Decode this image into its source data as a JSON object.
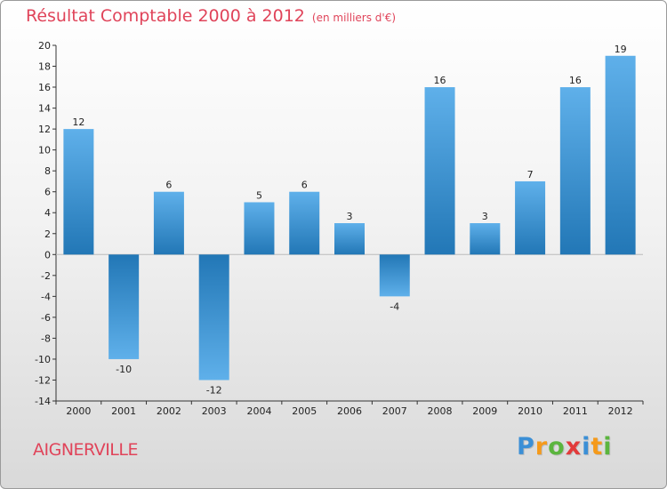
{
  "title": "Résultat Comptable 2000 à 2012",
  "subtitle": "(en milliers d'€)",
  "commune": "AIGNERVILLE",
  "logo": {
    "letters": [
      "P",
      "r",
      "o",
      "x",
      "i",
      "t",
      "i"
    ],
    "colors": [
      "#3b8fd6",
      "#f59a1b",
      "#5bb53e",
      "#e23b3b",
      "#3b8fd6",
      "#f59a1b",
      "#5bb53e"
    ]
  },
  "colors": {
    "title": "#e0445a",
    "bar_dark": "#2277b6",
    "bar_light": "#5fb0ea"
  },
  "chart_data": {
    "type": "bar",
    "title": "Résultat Comptable 2000 à 2012",
    "subtitle": "(en milliers d'€)",
    "categories": [
      "2000",
      "2001",
      "2002",
      "2003",
      "2004",
      "2005",
      "2006",
      "2007",
      "2008",
      "2009",
      "2010",
      "2011",
      "2012"
    ],
    "values": [
      12,
      -10,
      6,
      -12,
      5,
      6,
      3,
      -4,
      16,
      3,
      7,
      16,
      19
    ],
    "ylim": [
      -14,
      20
    ],
    "yticks": [
      -14,
      -12,
      -10,
      -8,
      -6,
      -4,
      -2,
      0,
      2,
      4,
      6,
      8,
      10,
      12,
      14,
      16,
      18,
      20
    ],
    "xlabel": "",
    "ylabel": "",
    "grid": false
  }
}
